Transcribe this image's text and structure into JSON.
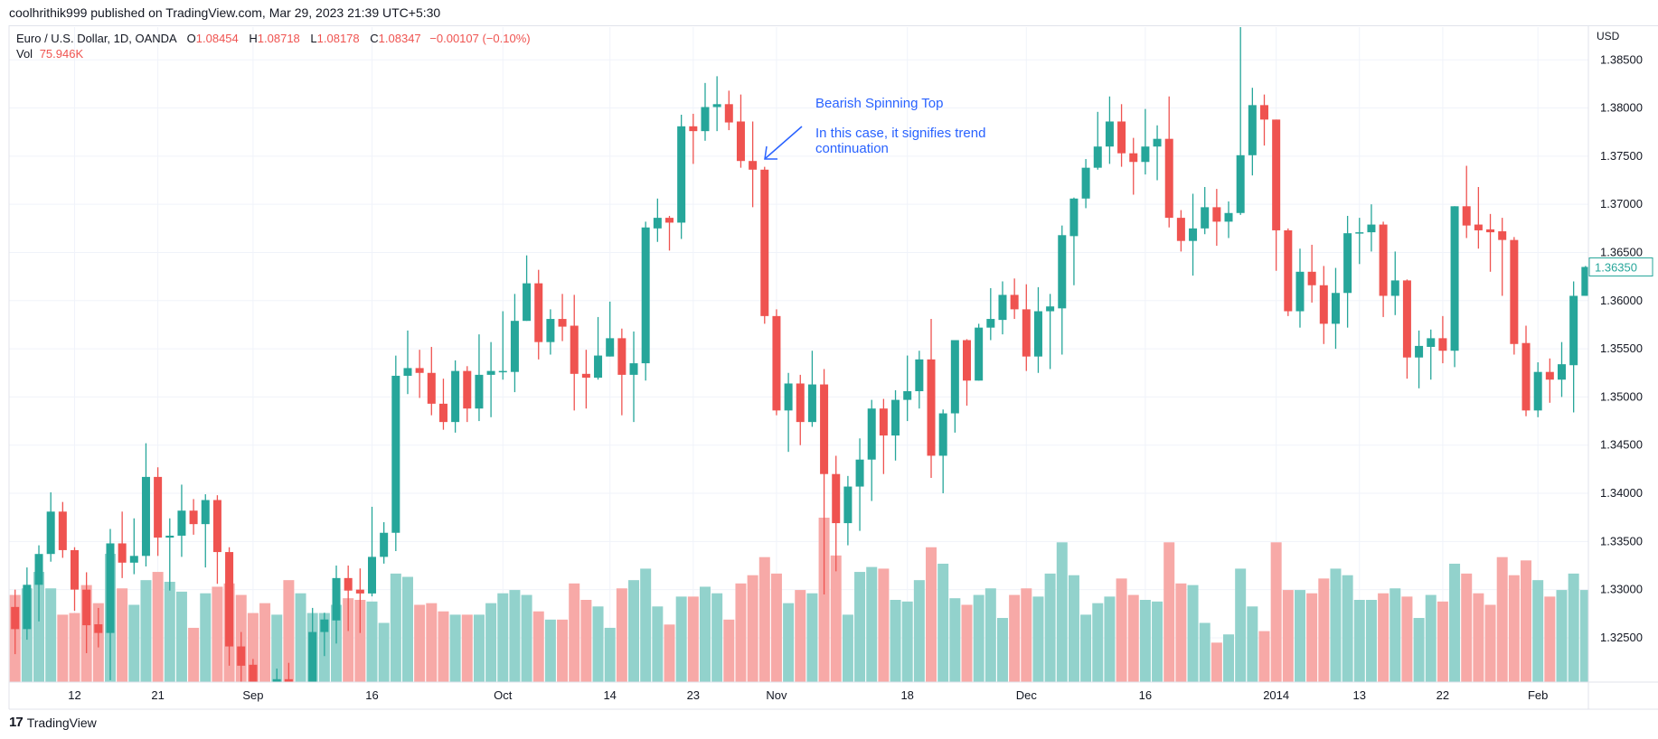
{
  "header": {
    "publisher_line": "coolhrithik999 published on TradingView.com, Mar 29, 2023 21:39 UTC+5:30"
  },
  "legend": {
    "symbol": "Euro / U.S. Dollar, 1D, OANDA",
    "o_label": "O",
    "open": "1.08454",
    "h_label": "H",
    "high": "1.08718",
    "l_label": "L",
    "low": "1.08178",
    "c_label": "C",
    "close": "1.08347",
    "change": "−0.00107 (−0.10%)",
    "vol_label": "Vol",
    "vol_value": "75.946K"
  },
  "price_axis": {
    "currency": "USD",
    "current_price_label": "1.36350"
  },
  "annotation": {
    "title": "Bearish Spinning Top",
    "line1": "In this case, it signifies trend",
    "line2": "continuation",
    "color": "#2962ff",
    "arrow_icon": "arrow-down-left"
  },
  "footer": {
    "brand": "TradingView",
    "logo_icon": "tradingview-logo"
  },
  "colors": {
    "up": "#26a69a",
    "down": "#ef5350",
    "up_volume": "#92d2cc",
    "down_volume": "#f7a9a7",
    "grid": "#f0f3fa"
  },
  "chart_data": {
    "type": "candlestick",
    "title": "Euro / U.S. Dollar, 1D, OANDA",
    "ylabel": "USD",
    "ylim": [
      1.3204,
      1.3884
    ],
    "grid": true,
    "price_ticks": [
      "1.38500",
      "1.38000",
      "1.37500",
      "1.37000",
      "1.36500",
      "1.36000",
      "1.35500",
      "1.35000",
      "1.34500",
      "1.34000",
      "1.33500",
      "1.33000",
      "1.32500"
    ],
    "x_ticks": [
      {
        "date": "2013-08-12",
        "label": "12"
      },
      {
        "date": "2013-08-21",
        "label": "21"
      },
      {
        "date": "2013-09-02",
        "label": "Sep"
      },
      {
        "date": "2013-09-16",
        "label": "16"
      },
      {
        "date": "2013-10-01",
        "label": "Oct"
      },
      {
        "date": "2013-10-14",
        "label": "14"
      },
      {
        "date": "2013-10-23",
        "label": "23"
      },
      {
        "date": "2013-11-01",
        "label": "Nov"
      },
      {
        "date": "2013-11-18",
        "label": "18"
      },
      {
        "date": "2013-12-02",
        "label": "Dec"
      },
      {
        "date": "2013-12-16",
        "label": "16"
      },
      {
        "date": "2014-01-02",
        "label": "2014"
      },
      {
        "date": "2014-01-13",
        "label": "13"
      },
      {
        "date": "2014-01-22",
        "label": "22"
      },
      {
        "date": "2014-02-03",
        "label": "Feb"
      }
    ],
    "annotated_candle_date": "2013-10-30",
    "columns": [
      "date",
      "open",
      "high",
      "low",
      "close",
      "volume_relative_pct"
    ],
    "candles": [
      [
        "2013-08-05",
        1.3282,
        1.33,
        1.3233,
        1.3259,
        53
      ],
      [
        "2013-08-06",
        1.3259,
        1.3323,
        1.3248,
        1.3305,
        57
      ],
      [
        "2013-08-07",
        1.3305,
        1.3346,
        1.3267,
        1.3337,
        67
      ],
      [
        "2013-08-08",
        1.3337,
        1.3401,
        1.3329,
        1.3381,
        57
      ],
      [
        "2013-08-09",
        1.3381,
        1.3391,
        1.3333,
        1.3341,
        41
      ],
      [
        "2013-08-12",
        1.3341,
        1.3344,
        1.3278,
        1.33,
        42
      ],
      [
        "2013-08-13",
        1.33,
        1.3318,
        1.3234,
        1.3263,
        59
      ],
      [
        "2013-08-14",
        1.3264,
        1.3281,
        1.324,
        1.3255,
        48
      ],
      [
        "2013-08-15",
        1.3255,
        1.3363,
        1.3206,
        1.3348,
        78
      ],
      [
        "2013-08-16",
        1.3348,
        1.3381,
        1.3312,
        1.3328,
        57
      ],
      [
        "2013-08-19",
        1.3328,
        1.3374,
        1.3316,
        1.3335,
        47
      ],
      [
        "2013-08-20",
        1.3335,
        1.3452,
        1.3324,
        1.3417,
        62
      ],
      [
        "2013-08-21",
        1.3417,
        1.3427,
        1.3335,
        1.3354,
        67
      ],
      [
        "2013-08-22",
        1.3354,
        1.3374,
        1.3299,
        1.3356,
        61
      ],
      [
        "2013-08-23",
        1.3356,
        1.3409,
        1.3334,
        1.3382,
        55
      ],
      [
        "2013-08-26",
        1.3382,
        1.3394,
        1.3357,
        1.3368,
        33
      ],
      [
        "2013-08-27",
        1.3368,
        1.3399,
        1.3323,
        1.3393,
        54
      ],
      [
        "2013-08-28",
        1.3393,
        1.3398,
        1.3306,
        1.3339,
        58
      ],
      [
        "2013-08-29",
        1.3339,
        1.3344,
        1.3221,
        1.3241,
        60
      ],
      [
        "2013-08-30",
        1.3241,
        1.3256,
        1.3195,
        1.3221,
        53
      ],
      [
        "2013-09-02",
        1.3222,
        1.3228,
        1.319,
        1.32,
        42
      ],
      [
        "2013-09-03",
        1.3196,
        1.3202,
        1.3185,
        1.319,
        48
      ],
      [
        "2013-09-04",
        1.3198,
        1.3218,
        1.319,
        1.3207,
        41
      ],
      [
        "2013-09-05",
        1.3207,
        1.3224,
        1.319,
        1.3198,
        62
      ],
      [
        "2013-09-06",
        1.3192,
        1.32,
        1.3185,
        1.3198,
        54
      ],
      [
        "2013-09-09",
        1.3198,
        1.3281,
        1.319,
        1.3256,
        42
      ],
      [
        "2013-09-10",
        1.3256,
        1.3276,
        1.3231,
        1.3269,
        42
      ],
      [
        "2013-09-11",
        1.3268,
        1.3325,
        1.3244,
        1.3312,
        47
      ],
      [
        "2013-09-12",
        1.3312,
        1.3325,
        1.3257,
        1.3299,
        51
      ],
      [
        "2013-09-13",
        1.33,
        1.3322,
        1.3255,
        1.3296,
        50
      ],
      [
        "2013-09-16",
        1.3296,
        1.3386,
        1.3293,
        1.3334,
        49
      ],
      [
        "2013-09-17",
        1.3334,
        1.337,
        1.3327,
        1.3359,
        36
      ],
      [
        "2013-09-18",
        1.3359,
        1.3543,
        1.334,
        1.3522,
        66
      ],
      [
        "2013-09-19",
        1.3522,
        1.3569,
        1.3503,
        1.353,
        64
      ],
      [
        "2013-09-20",
        1.353,
        1.3549,
        1.3499,
        1.3525,
        47
      ],
      [
        "2013-09-23",
        1.3525,
        1.3552,
        1.3481,
        1.3493,
        48
      ],
      [
        "2013-09-24",
        1.3493,
        1.3519,
        1.3466,
        1.3474,
        43
      ],
      [
        "2013-09-25",
        1.3474,
        1.3538,
        1.3463,
        1.3527,
        41
      ],
      [
        "2013-09-26",
        1.3527,
        1.3532,
        1.3474,
        1.3488,
        41
      ],
      [
        "2013-09-27",
        1.3488,
        1.3565,
        1.3475,
        1.3523,
        41
      ],
      [
        "2013-09-30",
        1.3523,
        1.3557,
        1.3479,
        1.3527,
        48
      ],
      [
        "2013-10-01",
        1.3526,
        1.3589,
        1.3518,
        1.3527,
        54
      ],
      [
        "2013-10-02",
        1.3526,
        1.3607,
        1.3505,
        1.3579,
        56
      ],
      [
        "2013-10-03",
        1.3579,
        1.3647,
        1.3579,
        1.3618,
        53
      ],
      [
        "2013-10-04",
        1.3618,
        1.3632,
        1.3539,
        1.3557,
        43
      ],
      [
        "2013-10-07",
        1.3557,
        1.3591,
        1.3544,
        1.3581,
        38
      ],
      [
        "2013-10-08",
        1.3581,
        1.3607,
        1.3558,
        1.3573,
        38
      ],
      [
        "2013-10-09",
        1.3574,
        1.3606,
        1.3486,
        1.3524,
        60
      ],
      [
        "2013-10-10",
        1.3524,
        1.3549,
        1.3488,
        1.352,
        50
      ],
      [
        "2013-10-11",
        1.352,
        1.3583,
        1.3518,
        1.3543,
        46
      ],
      [
        "2013-10-14",
        1.3542,
        1.3599,
        1.3542,
        1.3561,
        33
      ],
      [
        "2013-10-15",
        1.3561,
        1.3571,
        1.3481,
        1.3523,
        57
      ],
      [
        "2013-10-16",
        1.3523,
        1.3568,
        1.3474,
        1.3535,
        62
      ],
      [
        "2013-10-17",
        1.3535,
        1.3682,
        1.3517,
        1.3676,
        69
      ],
      [
        "2013-10-18",
        1.3675,
        1.3706,
        1.3661,
        1.3686,
        46
      ],
      [
        "2013-10-21",
        1.3686,
        1.3688,
        1.3652,
        1.3681,
        35
      ],
      [
        "2013-10-22",
        1.3681,
        1.3793,
        1.3664,
        1.3781,
        52
      ],
      [
        "2013-10-23",
        1.3781,
        1.3794,
        1.3742,
        1.3776,
        52
      ],
      [
        "2013-10-24",
        1.3776,
        1.3826,
        1.3766,
        1.3801,
        58
      ],
      [
        "2013-10-25",
        1.3801,
        1.3833,
        1.3776,
        1.3804,
        54
      ],
      [
        "2013-10-28",
        1.3804,
        1.3818,
        1.3777,
        1.3785,
        38
      ],
      [
        "2013-10-29",
        1.3786,
        1.3814,
        1.3738,
        1.3745,
        60
      ],
      [
        "2013-10-30",
        1.3745,
        1.3786,
        1.3697,
        1.3736,
        65
      ],
      [
        "2013-10-31",
        1.3736,
        1.3739,
        1.3576,
        1.3584,
        76
      ],
      [
        "2013-11-01",
        1.3584,
        1.3591,
        1.3481,
        1.3486,
        66
      ],
      [
        "2013-11-04",
        1.3486,
        1.3525,
        1.3443,
        1.3514,
        48
      ],
      [
        "2013-11-05",
        1.3514,
        1.3523,
        1.345,
        1.3474,
        56
      ],
      [
        "2013-11-06",
        1.3474,
        1.3548,
        1.3469,
        1.3513,
        54
      ],
      [
        "2013-11-07",
        1.3513,
        1.3529,
        1.3295,
        1.342,
        100
      ],
      [
        "2013-11-08",
        1.342,
        1.3439,
        1.3319,
        1.3369,
        77
      ],
      [
        "2013-11-11",
        1.3369,
        1.3418,
        1.3346,
        1.3407,
        41
      ],
      [
        "2013-11-12",
        1.3407,
        1.3457,
        1.3361,
        1.3435,
        67
      ],
      [
        "2013-11-13",
        1.3435,
        1.3497,
        1.3392,
        1.3488,
        70
      ],
      [
        "2013-11-14",
        1.3488,
        1.3498,
        1.342,
        1.346,
        69
      ],
      [
        "2013-11-15",
        1.346,
        1.3507,
        1.3434,
        1.3497,
        50
      ],
      [
        "2013-11-18",
        1.3497,
        1.3543,
        1.3475,
        1.3506,
        49
      ],
      [
        "2013-11-19",
        1.3506,
        1.3548,
        1.3488,
        1.3539,
        62
      ],
      [
        "2013-11-20",
        1.3539,
        1.3581,
        1.3416,
        1.3439,
        82
      ],
      [
        "2013-11-21",
        1.3439,
        1.3487,
        1.34,
        1.3483,
        72
      ],
      [
        "2013-11-22",
        1.3483,
        1.3559,
        1.3463,
        1.3559,
        51
      ],
      [
        "2013-11-25",
        1.3559,
        1.356,
        1.3491,
        1.3517,
        47
      ],
      [
        "2013-11-26",
        1.3517,
        1.3576,
        1.3517,
        1.3572,
        53
      ],
      [
        "2013-11-27",
        1.3572,
        1.3613,
        1.3559,
        1.3581,
        57
      ],
      [
        "2013-11-28",
        1.358,
        1.362,
        1.3565,
        1.3606,
        39
      ],
      [
        "2013-11-29",
        1.3606,
        1.3623,
        1.3581,
        1.3591,
        53
      ],
      [
        "2013-12-02",
        1.3591,
        1.3617,
        1.3527,
        1.3542,
        57
      ],
      [
        "2013-12-03",
        1.3542,
        1.3614,
        1.3525,
        1.3589,
        52
      ],
      [
        "2013-12-04",
        1.3589,
        1.3607,
        1.3529,
        1.3594,
        66
      ],
      [
        "2013-12-05",
        1.3592,
        1.3678,
        1.3544,
        1.3668,
        85
      ],
      [
        "2013-12-06",
        1.3667,
        1.3707,
        1.3616,
        1.3706,
        65
      ],
      [
        "2013-12-09",
        1.3706,
        1.3747,
        1.3696,
        1.3738,
        41
      ],
      [
        "2013-12-10",
        1.3738,
        1.3796,
        1.3736,
        1.376,
        48
      ],
      [
        "2013-12-11",
        1.376,
        1.3812,
        1.3742,
        1.3786,
        52
      ],
      [
        "2013-12-12",
        1.3786,
        1.3804,
        1.3739,
        1.3753,
        63
      ],
      [
        "2013-12-13",
        1.3753,
        1.3769,
        1.371,
        1.3744,
        53
      ],
      [
        "2013-12-16",
        1.3744,
        1.3799,
        1.3731,
        1.376,
        50
      ],
      [
        "2013-12-17",
        1.376,
        1.3782,
        1.3725,
        1.3768,
        49
      ],
      [
        "2013-12-18",
        1.3768,
        1.3812,
        1.3676,
        1.3686,
        85
      ],
      [
        "2013-12-19",
        1.3686,
        1.3694,
        1.3651,
        1.3662,
        60
      ],
      [
        "2013-12-20",
        1.3662,
        1.3711,
        1.3626,
        1.3675,
        59
      ],
      [
        "2013-12-23",
        1.3675,
        1.3718,
        1.3669,
        1.3697,
        36
      ],
      [
        "2013-12-24",
        1.3697,
        1.3716,
        1.3657,
        1.3682,
        24
      ],
      [
        "2013-12-26",
        1.3682,
        1.3703,
        1.3665,
        1.3691,
        29
      ],
      [
        "2013-12-27",
        1.3691,
        1.389,
        1.3689,
        1.3751,
        69
      ],
      [
        "2013-12-30",
        1.3751,
        1.3821,
        1.373,
        1.3803,
        46
      ],
      [
        "2013-12-31",
        1.3803,
        1.3814,
        1.3761,
        1.3788,
        31
      ],
      [
        "2014-01-02",
        1.3788,
        1.3788,
        1.3631,
        1.3673,
        85
      ],
      [
        "2014-01-03",
        1.3673,
        1.3675,
        1.3584,
        1.3589,
        56
      ],
      [
        "2014-01-06",
        1.3589,
        1.3654,
        1.3572,
        1.363,
        56
      ],
      [
        "2014-01-07",
        1.363,
        1.3658,
        1.3598,
        1.3616,
        54
      ],
      [
        "2014-01-08",
        1.3616,
        1.3636,
        1.3555,
        1.3576,
        63
      ],
      [
        "2014-01-09",
        1.3576,
        1.3634,
        1.355,
        1.3608,
        69
      ],
      [
        "2014-01-10",
        1.3608,
        1.3688,
        1.3572,
        1.367,
        65
      ],
      [
        "2014-01-13",
        1.367,
        1.3686,
        1.3638,
        1.3671,
        50
      ],
      [
        "2014-01-14",
        1.3671,
        1.37,
        1.3651,
        1.3679,
        50
      ],
      [
        "2014-01-15",
        1.3679,
        1.3682,
        1.3583,
        1.3605,
        54
      ],
      [
        "2014-01-16",
        1.3605,
        1.3651,
        1.3585,
        1.3621,
        57
      ],
      [
        "2014-01-17",
        1.3621,
        1.3622,
        1.3519,
        1.3541,
        52
      ],
      [
        "2014-01-20",
        1.3541,
        1.3569,
        1.3509,
        1.3553,
        39
      ],
      [
        "2014-01-21",
        1.3552,
        1.357,
        1.3518,
        1.3561,
        53
      ],
      [
        "2014-01-22",
        1.3561,
        1.3584,
        1.3535,
        1.3548,
        49
      ],
      [
        "2014-01-23",
        1.3548,
        1.3698,
        1.3531,
        1.3698,
        72
      ],
      [
        "2014-01-24",
        1.3698,
        1.374,
        1.3665,
        1.3678,
        66
      ],
      [
        "2014-01-27",
        1.3679,
        1.3718,
        1.3654,
        1.3673,
        54
      ],
      [
        "2014-01-28",
        1.3674,
        1.369,
        1.363,
        1.3671,
        47
      ],
      [
        "2014-01-29",
        1.3672,
        1.3686,
        1.3605,
        1.3663,
        76
      ],
      [
        "2014-01-30",
        1.3663,
        1.3666,
        1.3544,
        1.3555,
        65
      ],
      [
        "2014-01-31",
        1.3556,
        1.3574,
        1.348,
        1.3486,
        74
      ],
      [
        "2014-02-03",
        1.3486,
        1.3536,
        1.3479,
        1.3526,
        62
      ],
      [
        "2014-02-04",
        1.3526,
        1.354,
        1.3494,
        1.3518,
        52
      ],
      [
        "2014-02-05",
        1.3518,
        1.3557,
        1.35,
        1.3534,
        56
      ],
      [
        "2014-02-06",
        1.3533,
        1.362,
        1.3484,
        1.3605,
        66
      ],
      [
        "2014-02-07",
        1.3605,
        1.3636,
        1.3605,
        1.3635,
        56
      ]
    ]
  }
}
